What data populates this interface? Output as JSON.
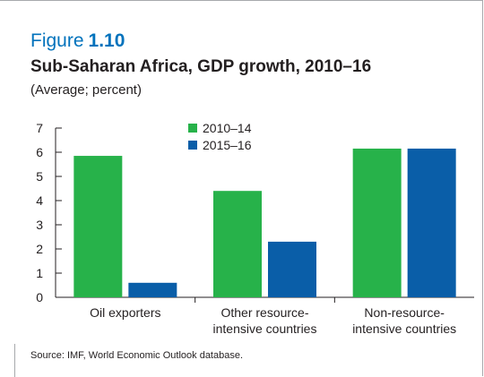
{
  "figure": {
    "prefix": "Figure",
    "number": "1.10"
  },
  "title": "Sub-Saharan Africa, GDP growth, 2010–16",
  "subtitle": "(Average; percent)",
  "source": "Source: IMF, World Economic Outlook database.",
  "chart_data": {
    "type": "bar",
    "categories": [
      [
        "Oil exporters"
      ],
      [
        "Other resource-",
        "intensive countries"
      ],
      [
        "Non-resource-",
        "intensive countries"
      ]
    ],
    "series": [
      {
        "name": "2010–14",
        "color": "#27b24a",
        "values": [
          5.85,
          4.4,
          6.15
        ]
      },
      {
        "name": "2015–16",
        "color": "#0a5ea8",
        "values": [
          0.6,
          2.3,
          6.15
        ]
      }
    ],
    "ylim": [
      0,
      7
    ],
    "yticks": [
      "0",
      "1",
      "2",
      "3",
      "4",
      "5",
      "6",
      "7"
    ],
    "xlabel": "",
    "ylabel": "",
    "grid": false,
    "legend": "top-center"
  }
}
